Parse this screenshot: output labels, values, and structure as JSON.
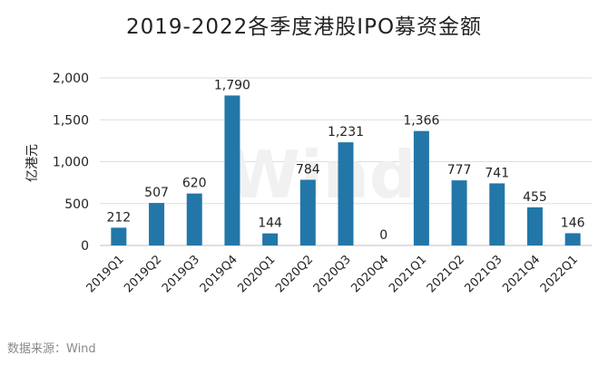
{
  "chart_data": {
    "type": "bar",
    "title": "2019-2022各季度港股IPO募资金额",
    "ylabel": "亿港元",
    "xlabel": "",
    "ylim": [
      0,
      2000
    ],
    "yticks": [
      0,
      500,
      1000,
      1500,
      2000
    ],
    "ytick_labels": [
      "0",
      "500",
      "1,000",
      "1,500",
      "2,000"
    ],
    "categories": [
      "2019Q1",
      "2019Q2",
      "2019Q3",
      "2019Q4",
      "2020Q1",
      "2020Q2",
      "2020Q3",
      "2020Q4",
      "2021Q1",
      "2021Q2",
      "2021Q3",
      "2021Q4",
      "2022Q1"
    ],
    "values": [
      212,
      507,
      620,
      1790,
      144,
      784,
      1231,
      0,
      1366,
      777,
      741,
      455,
      146
    ],
    "data_labels": [
      "212",
      "507",
      "620",
      "1,790",
      "144",
      "784",
      "1,231",
      "0",
      "1,366",
      "777",
      "741",
      "455",
      "146"
    ],
    "grid": true,
    "legend": "none",
    "bar_color": "#2277a8"
  },
  "watermark": "Wind",
  "source": "数据来源：Wind"
}
